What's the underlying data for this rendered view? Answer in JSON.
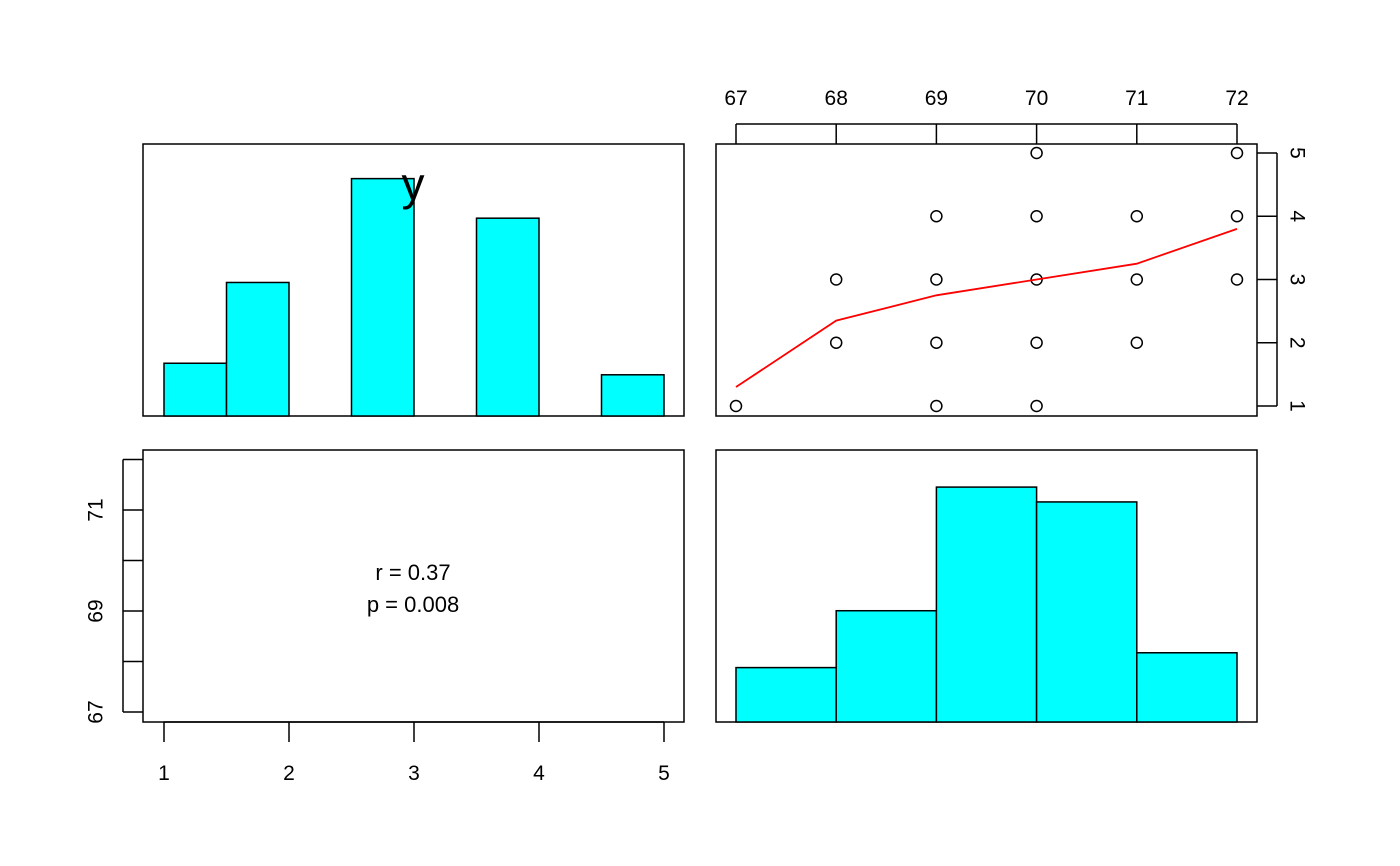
{
  "chart_data": [
    {
      "type": "bar",
      "panel": "top-left",
      "title": "y",
      "bins": [
        [
          1.0,
          1.5
        ],
        [
          1.5,
          2.0
        ],
        [
          2.0,
          2.5
        ],
        [
          2.5,
          3.0
        ],
        [
          3.0,
          3.5
        ],
        [
          3.5,
          4.0
        ],
        [
          4.0,
          4.5
        ],
        [
          4.5,
          5.0
        ]
      ],
      "values": [
        0.32,
        0.81,
        0,
        1.44,
        0,
        1.2,
        0,
        0.25
      ],
      "xlim": [
        1,
        5
      ],
      "ylim": [
        0,
        1.65
      ],
      "bar_color": "#00FFFF"
    },
    {
      "type": "scatter",
      "panel": "top-right",
      "x": [
        67,
        68,
        68,
        69,
        69,
        69,
        69,
        70,
        70,
        70,
        70,
        70,
        71,
        71,
        71,
        72,
        72,
        72
      ],
      "y": [
        1,
        2,
        3,
        1,
        2,
        3,
        4,
        1,
        2,
        3,
        4,
        5,
        2,
        3,
        4,
        3,
        4,
        5
      ],
      "xlim": [
        67,
        72
      ],
      "ylim": [
        1,
        5
      ],
      "x_ticks": [
        "67",
        "68",
        "69",
        "70",
        "71",
        "72"
      ],
      "x_axis_position": "top",
      "y_ticks": [
        "1",
        "2",
        "3",
        "4",
        "5"
      ],
      "y_axis_position": "right",
      "smooth_line": {
        "x": [
          67,
          68,
          69,
          70,
          71,
          72
        ],
        "y": [
          1.3,
          2.35,
          2.75,
          3.0,
          3.25,
          3.8
        ],
        "color": "#FF0000"
      }
    },
    {
      "type": "table",
      "panel": "bottom-left",
      "stat_lines": [
        "r = 0.37",
        "p = 0.008"
      ],
      "x_ticks": [
        "1",
        "2",
        "3",
        "4",
        "5"
      ],
      "x_axis_position": "bottom",
      "y_ticks": [
        "67",
        "69",
        "71"
      ],
      "y_axis_position": "left"
    },
    {
      "type": "bar",
      "panel": "bottom-right",
      "bins": [
        [
          67,
          68
        ],
        [
          68,
          69
        ],
        [
          69,
          70
        ],
        [
          70,
          71
        ],
        [
          71,
          72
        ]
      ],
      "values": [
        0.22,
        0.45,
        0.95,
        0.89,
        0.28
      ],
      "xlim": [
        67,
        72
      ],
      "ylim": [
        0,
        1.1
      ],
      "bar_color": "#00FFFF"
    }
  ]
}
